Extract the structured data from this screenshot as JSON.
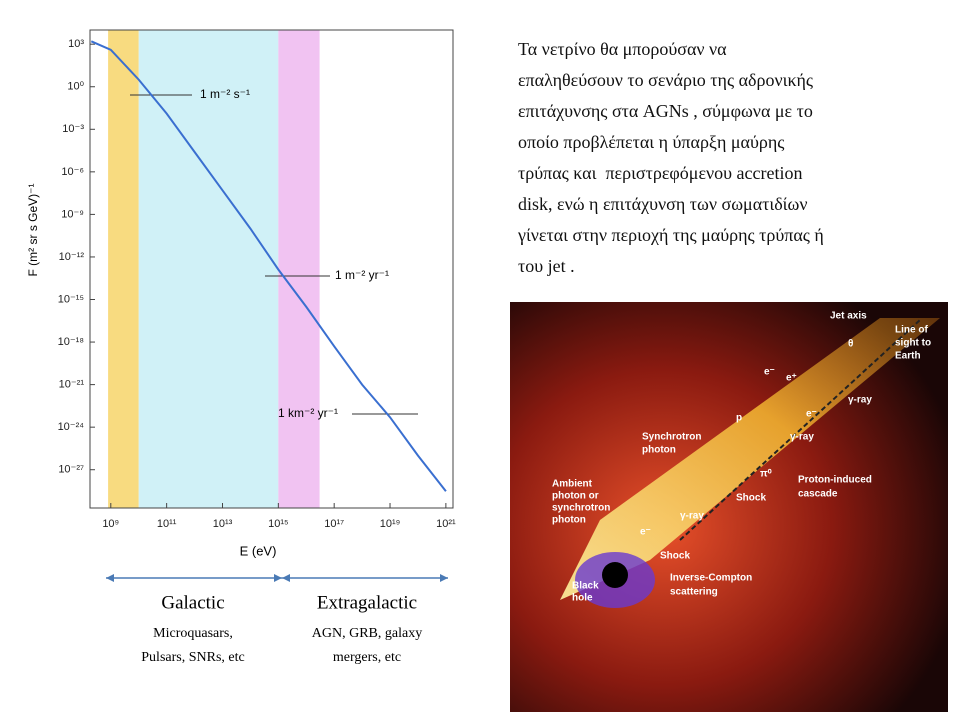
{
  "chart_data": {
    "type": "line",
    "xlabel": "E (eV)",
    "ylabel": "F (m² sr s GeV)⁻¹",
    "xscale": "log",
    "yscale": "log",
    "x": [
      200000000.0,
      1000000000.0,
      10000000000.0,
      100000000000.0,
      1000000000000.0,
      10000000000000.0,
      100000000000000.0,
      1000000000000000.0,
      1e+16,
      1e+17,
      1e+18,
      1e+19,
      1e+20,
      1e+21
    ],
    "values": [
      1600,
      400,
      3.2,
      0.013,
      2.5e-05,
      5e-08,
      1e-10,
      1.3e-13,
      3e-16,
      5e-19,
      1e-21,
      5e-24,
      1e-26,
      3e-29
    ],
    "color": "#3a6fd0",
    "xlim": [
      180000000.0,
      1.8e+21
    ],
    "ylim": [
      2e-30,
      10000.0
    ],
    "xticks": [
      {
        "value": 1000000000.0,
        "label": "10⁹"
      },
      {
        "value": 100000000000.0,
        "label": "10¹¹"
      },
      {
        "value": 10000000000000.0,
        "label": "10¹³"
      },
      {
        "value": 1000000000000000.0,
        "label": "10¹⁵"
      },
      {
        "value": 1e+17,
        "label": "10¹⁷"
      },
      {
        "value": 1e+19,
        "label": "10¹⁹"
      },
      {
        "value": 1e+21,
        "label": "10²¹"
      }
    ],
    "yticks": [
      {
        "value": 1000.0,
        "label": "10³"
      },
      {
        "value": 1,
        "label": "10⁰"
      },
      {
        "value": 0.001,
        "label": "10⁻³"
      },
      {
        "value": 1e-06,
        "label": "10⁻⁶"
      },
      {
        "value": 1e-09,
        "label": "10⁻⁹"
      },
      {
        "value": 1e-12,
        "label": "10⁻¹²"
      },
      {
        "value": 1e-15,
        "label": "10⁻¹⁵"
      },
      {
        "value": 1e-18,
        "label": "10⁻¹⁸"
      },
      {
        "value": 1e-21,
        "label": "10⁻²¹"
      },
      {
        "value": 1e-24,
        "label": "10⁻²⁴"
      },
      {
        "value": 1e-27,
        "label": "10⁻²⁷"
      }
    ],
    "bands": [
      {
        "from": 800000000.0,
        "to": 10000000000.0,
        "color": "#f7d56a"
      },
      {
        "from": 10000000000.0,
        "to": 1000000000000000.0,
        "color": "#c8eef6"
      },
      {
        "from": 1000000000000000.0,
        "to": 3e+16,
        "color": "#eeb8f0"
      }
    ],
    "annotations": [
      "1 m⁻² s⁻¹",
      "1 m⁻² yr⁻¹",
      "1 km⁻² yr⁻¹"
    ]
  },
  "regions": [
    {
      "title": "Galactic",
      "lines": [
        "Microquasars,",
        "Pulsars, SNRs, etc"
      ]
    },
    {
      "title": "Extragalactic",
      "lines": [
        "AGN, GRB, galaxy",
        "mergers, etc"
      ]
    }
  ],
  "text": [
    "Τα νετρίνο θα μπορούσαν να",
    "επαληθεύσουν το σενάριο της αδρονικής",
    "επιτάχυνσης στα AGNs , σύμφωνα με το",
    "οποίο προβλέπεται η ύπαρξη μαύρης",
    "τρύπας και  περιστρεφόμενου accretion",
    "disk, ενώ η επιτάχυνση των σωματιδίων",
    "γίνεται στην περιοχή της μαύρης τρύπας ή",
    "του jet ."
  ],
  "figure": {
    "labels": [
      "Jet axis",
      "Line of",
      "sight to",
      "Earth",
      "θ",
      "e⁻",
      "e⁺",
      "e⁻",
      "γ-ray",
      "γ-ray",
      "Synchrotron",
      "photon",
      "p",
      "π⁰",
      "Shock",
      "Proton-induced",
      "cascade",
      "Ambient",
      "photon or",
      "synchrotron",
      "photon",
      "γ-ray",
      "e⁻",
      "Shock",
      "Black",
      "hole",
      "Inverse-Compton",
      "scattering"
    ]
  }
}
